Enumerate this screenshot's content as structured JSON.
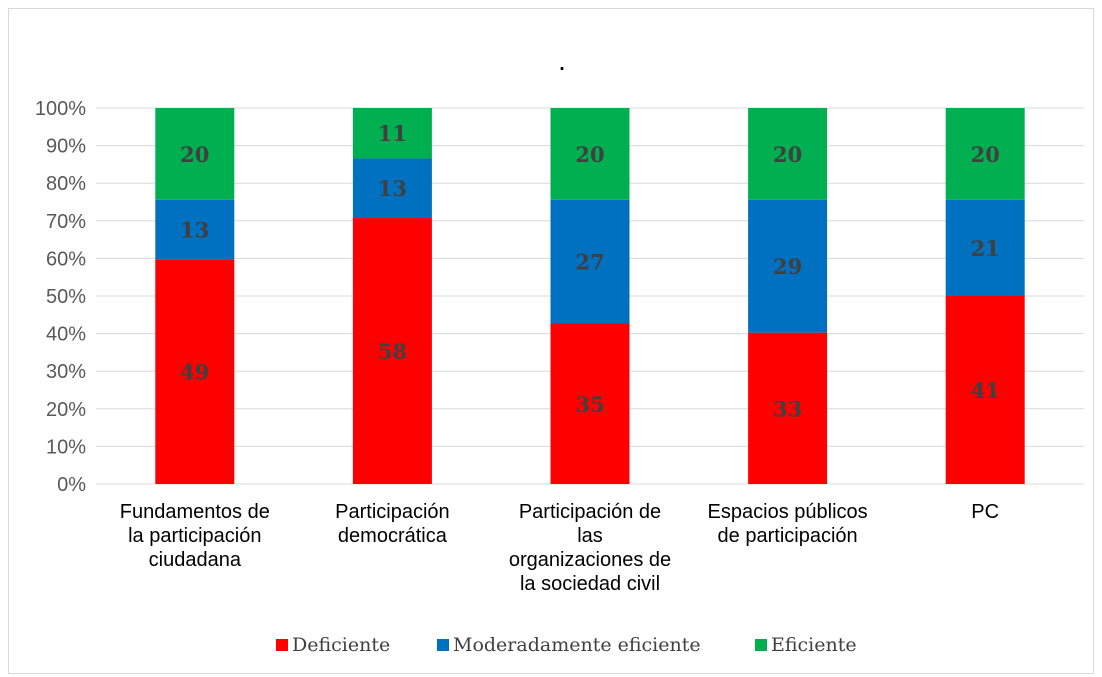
{
  "chart_data": {
    "type": "bar",
    "stacked": "percent",
    "title": ".",
    "categories": [
      "Fundamentos de la participación ciudadana",
      "Participación democrática",
      "Participación de las organizaciones de la sociedad civil",
      "Espacios públicos de participación",
      "PC"
    ],
    "category_lines": [
      [
        "Fundamentos de",
        "la participación",
        "ciudadana"
      ],
      [
        "Participación",
        "democrática"
      ],
      [
        "Participación de",
        "las",
        "organizaciones de",
        "la sociedad civil"
      ],
      [
        "Espacios públicos",
        "de participación"
      ],
      [
        "PC"
      ]
    ],
    "series": [
      {
        "name": "Deficiente",
        "color": "#ff0000",
        "values": [
          49,
          58,
          35,
          33,
          41
        ]
      },
      {
        "name": "Moderadamente eficiente",
        "color": "#0070c0",
        "values": [
          13,
          13,
          27,
          29,
          21
        ]
      },
      {
        "name": "Eficiente",
        "color": "#00b050",
        "values": [
          20,
          11,
          20,
          20,
          20
        ]
      }
    ],
    "yticks": [
      "0%",
      "10%",
      "20%",
      "30%",
      "40%",
      "50%",
      "60%",
      "70%",
      "80%",
      "90%",
      "100%"
    ],
    "ylim": [
      0,
      100
    ],
    "grid": true,
    "legend": "bottom"
  }
}
